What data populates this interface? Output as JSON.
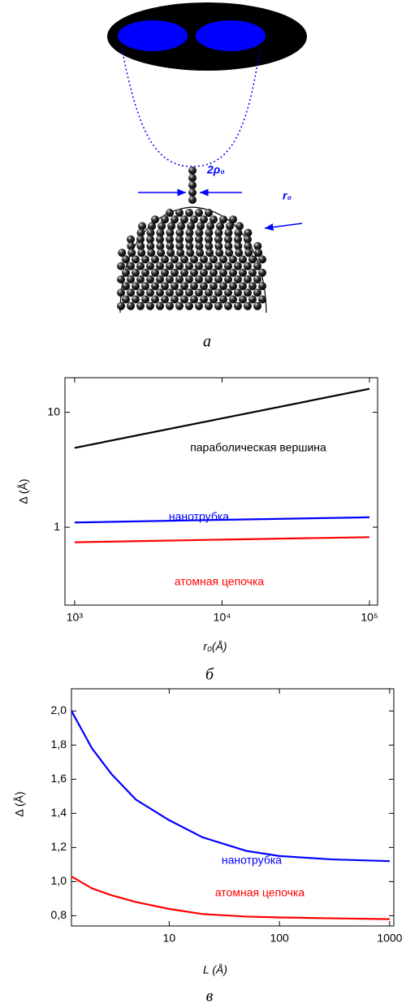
{
  "diagram": {
    "labels": {
      "diameter": "2ρ₀",
      "radius": "r₀"
    },
    "caption": "а"
  },
  "chart_data": [
    {
      "type": "line",
      "caption": "б",
      "x_label": "r₀(Å)",
      "y_label": "Δ (Å)",
      "xscale": "log",
      "yscale": "log",
      "x": [
        1000,
        10000,
        100000
      ],
      "series": [
        {
          "name": "параболическая вершина",
          "color": "#000000",
          "values": [
            4.9,
            8.85,
            16
          ]
        },
        {
          "name": "нанотрубка",
          "color": "#0000ff",
          "values": [
            1.1,
            1.16,
            1.22
          ]
        },
        {
          "name": "атомная цепочка",
          "color": "#ff0000",
          "values": [
            0.74,
            0.78,
            0.82
          ]
        }
      ],
      "xlim": [
        860,
        113500
      ],
      "ylim": [
        0.21,
        20
      ],
      "xticks": [
        {
          "value": 1000,
          "label": "10³"
        },
        {
          "value": 10000,
          "label": "10⁴"
        },
        {
          "value": 100000,
          "label": "10⁵"
        }
      ],
      "yticks": [
        1,
        10
      ]
    },
    {
      "type": "line",
      "caption": "в",
      "x_label": "L (Å)",
      "y_label": "Δ (Å)",
      "xscale": "log",
      "yscale": "linear",
      "x": [
        1.3,
        2,
        3,
        5,
        10,
        20,
        50,
        100,
        300,
        1000
      ],
      "series": [
        {
          "name": "нанотрубка",
          "color": "#0000ff",
          "values": [
            2.0,
            1.78,
            1.63,
            1.48,
            1.36,
            1.26,
            1.18,
            1.15,
            1.13,
            1.12
          ]
        },
        {
          "name": "атомная цепочка",
          "color": "#ff0000",
          "values": [
            1.03,
            0.96,
            0.92,
            0.88,
            0.84,
            0.81,
            0.795,
            0.79,
            0.785,
            0.78
          ]
        }
      ],
      "xlim": [
        1.3,
        1090
      ],
      "ylim": [
        0.74,
        2.13
      ],
      "xticks": [
        10,
        100,
        1000
      ],
      "yticks": [
        {
          "value": 0.8,
          "label": "0,8"
        },
        {
          "value": 1.0,
          "label": "1,0"
        },
        {
          "value": 1.2,
          "label": "1,2"
        },
        {
          "value": 1.4,
          "label": "1,4"
        },
        {
          "value": 1.6,
          "label": "1,6"
        },
        {
          "value": 1.8,
          "label": "1,8"
        },
        {
          "value": 2.0,
          "label": "2,0"
        }
      ]
    }
  ]
}
